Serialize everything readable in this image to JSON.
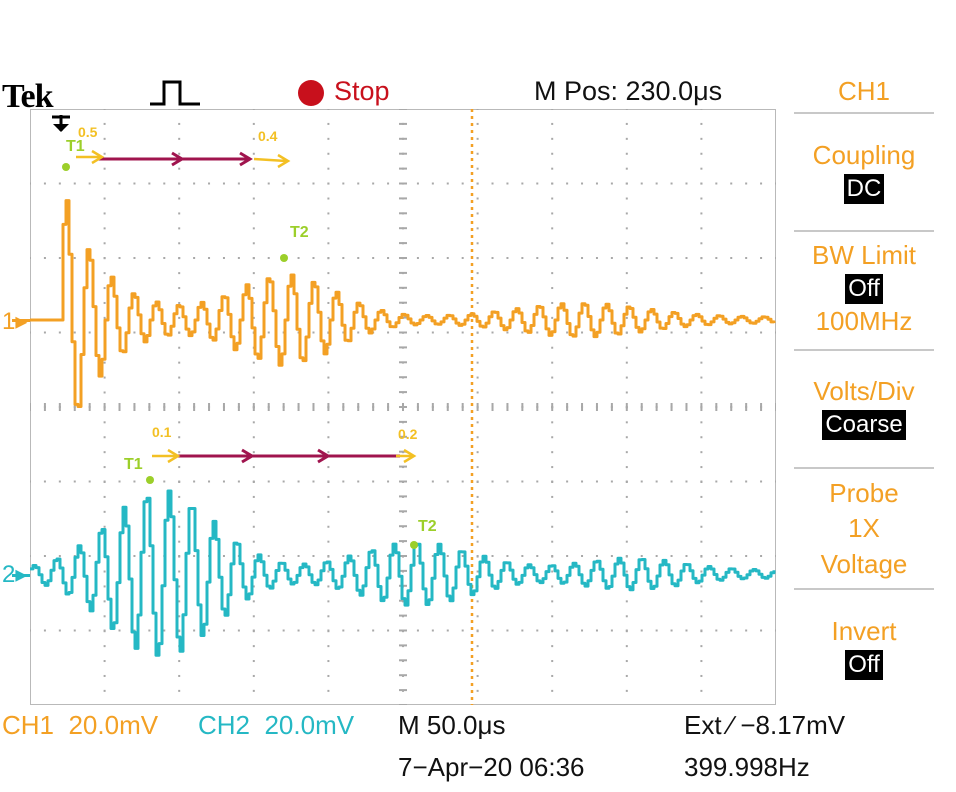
{
  "header": {
    "brand": "Tek",
    "trigger_icon": "square-pulse-icon",
    "run_state": "Stop",
    "m_pos": "M Pos: 230.0μs"
  },
  "side_menu": {
    "title": "CH1",
    "items": [
      {
        "label": "Coupling",
        "value": "DC",
        "sub": ""
      },
      {
        "label": "BW Limit",
        "value": "Off",
        "sub": "100MHz"
      },
      {
        "label": "Volts/Div",
        "value": "Coarse",
        "sub": ""
      },
      {
        "label": "Probe",
        "value": "",
        "sub": "1X\nVoltage"
      },
      {
        "label": "Invert",
        "value": "Off",
        "sub": ""
      }
    ]
  },
  "markers": {
    "ch1": "1",
    "ch2": "2"
  },
  "annotations": {
    "ch1_start": "0.5",
    "ch1_end": "0.4",
    "ch2_start": "0.1",
    "ch2_end": "0.2",
    "t1": "T1",
    "t2": "T2"
  },
  "status": {
    "ch1_label": "CH1",
    "ch1_scale": "20.0mV",
    "ch2_label": "CH2",
    "ch2_scale": "20.0mV",
    "timebase": "M 50.0μs",
    "trigger": "Ext ∕ −8.17mV",
    "date": "7−Apr−20 06:36",
    "frequency": "399.998Hz"
  },
  "colors": {
    "ch1": "#f3a024",
    "ch2": "#25b8c4",
    "stop": "#c8101c",
    "annotation_arrow": "#a0144e",
    "annotation_dot": "#9ccf2a"
  }
}
